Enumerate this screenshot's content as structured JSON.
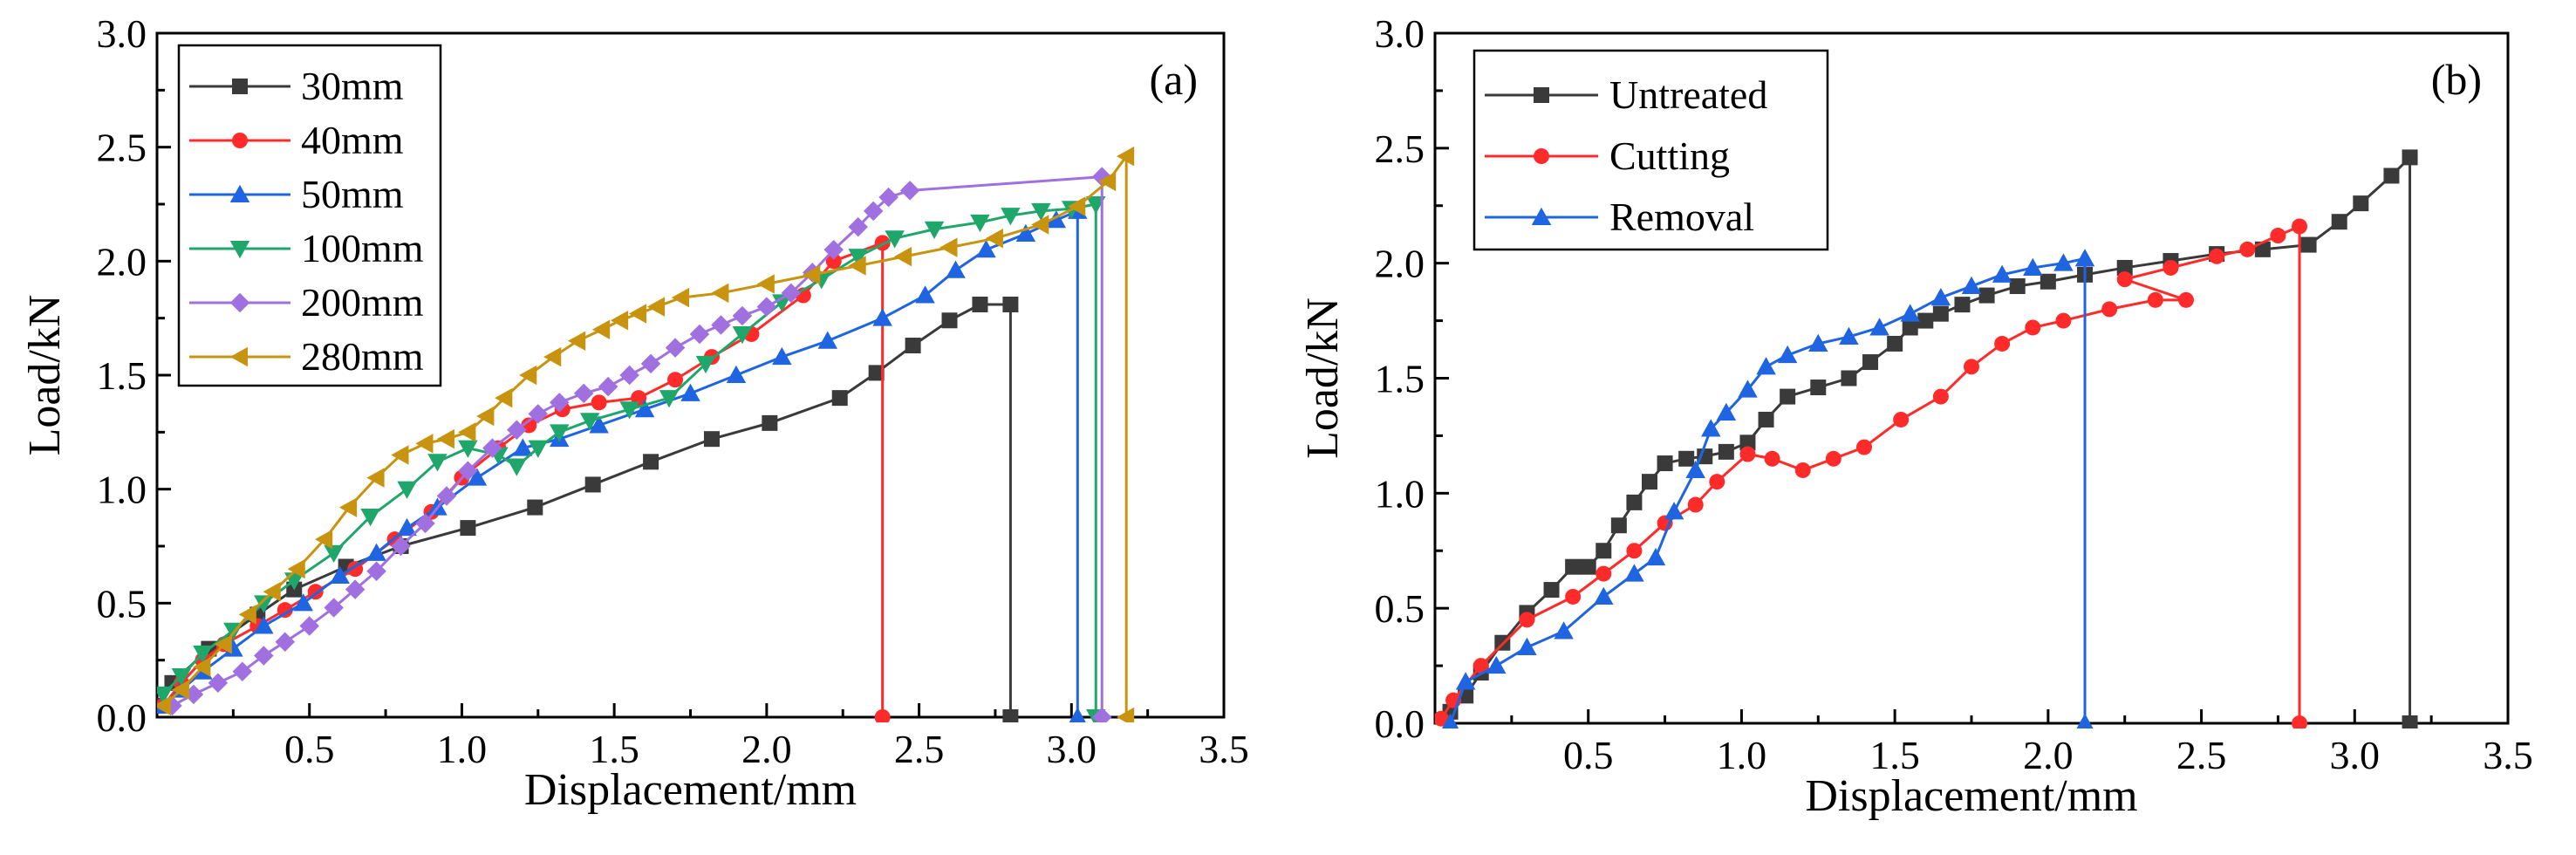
{
  "chart_data": [
    {
      "type": "line",
      "panel_label": "(a)",
      "xlabel": "Displacement/mm",
      "ylabel": "Load/kN",
      "xlim": [
        0,
        3.5
      ],
      "ylim": [
        0,
        3.0
      ],
      "xticks": [
        "0.5",
        "1.0",
        "1.5",
        "2.0",
        "2.5",
        "3.0",
        "3.5"
      ],
      "yticks": [
        "0.0",
        "0.5",
        "1.0",
        "1.5",
        "2.0",
        "2.5",
        "3.0"
      ],
      "legend_position": "top-left",
      "series": [
        {
          "name": "30mm",
          "color": "#3a3a3a",
          "marker": "square",
          "x": [
            0,
            0.05,
            0.17,
            0.33,
            0.45,
            0.62,
            0.8,
            1.02,
            1.24,
            1.43,
            1.62,
            1.82,
            2.01,
            2.24,
            2.36,
            2.48,
            2.6,
            2.7,
            2.8,
            2.8
          ],
          "y": [
            0.05,
            0.15,
            0.3,
            0.45,
            0.56,
            0.66,
            0.75,
            0.83,
            0.92,
            1.02,
            1.12,
            1.22,
            1.29,
            1.4,
            1.51,
            1.63,
            1.74,
            1.81,
            1.81,
            0.0
          ]
        },
        {
          "name": "40mm",
          "color": "#ff2a2a",
          "marker": "circle",
          "x": [
            0.02,
            0.08,
            0.15,
            0.22,
            0.33,
            0.42,
            0.52,
            0.65,
            0.78,
            0.9,
            1.0,
            1.12,
            1.22,
            1.33,
            1.45,
            1.58,
            1.7,
            1.82,
            1.95,
            2.12,
            2.22,
            2.38,
            2.38
          ],
          "y": [
            0.05,
            0.15,
            0.25,
            0.32,
            0.4,
            0.47,
            0.55,
            0.65,
            0.78,
            0.9,
            1.05,
            1.18,
            1.28,
            1.35,
            1.38,
            1.4,
            1.48,
            1.58,
            1.68,
            1.85,
            2.0,
            2.08,
            0.0
          ]
        },
        {
          "name": "50mm",
          "color": "#1f64e0",
          "marker": "triangle-up",
          "x": [
            0.02,
            0.08,
            0.15,
            0.25,
            0.35,
            0.48,
            0.6,
            0.72,
            0.82,
            0.92,
            1.05,
            1.2,
            1.32,
            1.45,
            1.6,
            1.75,
            1.9,
            2.05,
            2.2,
            2.38,
            2.52,
            2.62,
            2.72,
            2.85,
            2.95,
            3.02,
            3.02
          ],
          "y": [
            0.05,
            0.12,
            0.2,
            0.3,
            0.4,
            0.5,
            0.62,
            0.72,
            0.83,
            0.92,
            1.05,
            1.18,
            1.22,
            1.28,
            1.35,
            1.42,
            1.5,
            1.58,
            1.65,
            1.75,
            1.85,
            1.96,
            2.05,
            2.12,
            2.18,
            2.22,
            0.0
          ]
        },
        {
          "name": "100mm",
          "color": "#1fa66b",
          "marker": "triangle-down",
          "x": [
            0.02,
            0.08,
            0.15,
            0.25,
            0.35,
            0.45,
            0.58,
            0.7,
            0.82,
            0.92,
            1.02,
            1.12,
            1.18,
            1.25,
            1.32,
            1.42,
            1.55,
            1.68,
            1.8,
            1.92,
            2.05,
            2.18,
            2.3,
            2.42,
            2.55,
            2.7,
            2.8,
            2.9,
            3.0,
            3.08,
            3.08
          ],
          "y": [
            0.1,
            0.18,
            0.28,
            0.38,
            0.5,
            0.6,
            0.72,
            0.88,
            1.0,
            1.12,
            1.18,
            1.15,
            1.1,
            1.18,
            1.25,
            1.3,
            1.35,
            1.4,
            1.55,
            1.68,
            1.82,
            1.92,
            2.02,
            2.1,
            2.14,
            2.17,
            2.2,
            2.22,
            2.23,
            2.25,
            0.0
          ]
        },
        {
          "name": "200mm",
          "color": "#a070e0",
          "marker": "diamond",
          "x": [
            0.05,
            0.12,
            0.2,
            0.28,
            0.35,
            0.42,
            0.5,
            0.58,
            0.65,
            0.72,
            0.8,
            0.88,
            0.95,
            1.02,
            1.1,
            1.18,
            1.25,
            1.32,
            1.4,
            1.48,
            1.55,
            1.62,
            1.7,
            1.78,
            1.85,
            1.92,
            2.0,
            2.08,
            2.15,
            2.22,
            2.3,
            2.35,
            2.4,
            2.47,
            3.1,
            3.1
          ],
          "y": [
            0.05,
            0.1,
            0.15,
            0.2,
            0.27,
            0.33,
            0.4,
            0.48,
            0.56,
            0.64,
            0.75,
            0.85,
            0.97,
            1.08,
            1.18,
            1.26,
            1.33,
            1.38,
            1.42,
            1.45,
            1.5,
            1.55,
            1.62,
            1.68,
            1.72,
            1.76,
            1.8,
            1.86,
            1.95,
            2.05,
            2.15,
            2.22,
            2.28,
            2.31,
            2.37,
            0.0
          ]
        },
        {
          "name": "280mm",
          "color": "#c89410",
          "marker": "triangle-left",
          "x": [
            0.02,
            0.08,
            0.15,
            0.22,
            0.3,
            0.38,
            0.46,
            0.55,
            0.63,
            0.72,
            0.8,
            0.88,
            0.95,
            1.02,
            1.08,
            1.14,
            1.22,
            1.3,
            1.38,
            1.46,
            1.52,
            1.58,
            1.64,
            1.72,
            1.85,
            2.0,
            2.15,
            2.3,
            2.45,
            2.6,
            2.75,
            2.9,
            3.02,
            3.12,
            3.18,
            3.18
          ],
          "y": [
            0.05,
            0.12,
            0.22,
            0.32,
            0.45,
            0.55,
            0.65,
            0.78,
            0.92,
            1.05,
            1.15,
            1.2,
            1.22,
            1.25,
            1.32,
            1.4,
            1.5,
            1.58,
            1.65,
            1.7,
            1.74,
            1.77,
            1.8,
            1.84,
            1.86,
            1.9,
            1.94,
            1.98,
            2.02,
            2.06,
            2.1,
            2.16,
            2.24,
            2.35,
            2.46,
            0.0
          ]
        }
      ]
    },
    {
      "type": "line",
      "panel_label": "(b)",
      "xlabel": "Displacement/mm",
      "ylabel": "Load/kN",
      "xlim": [
        0,
        3.5
      ],
      "ylim": [
        0,
        3.0
      ],
      "xticks": [
        "0.5",
        "1.0",
        "1.5",
        "2.0",
        "2.5",
        "3.0",
        "3.5"
      ],
      "yticks": [
        "0.0",
        "0.5",
        "1.0",
        "1.5",
        "2.0",
        "2.5",
        "3.0"
      ],
      "legend_position": "top-left",
      "series": [
        {
          "name": "Untreated",
          "color": "#3a3a3a",
          "marker": "square",
          "x": [
            0.05,
            0.1,
            0.15,
            0.22,
            0.3,
            0.38,
            0.45,
            0.5,
            0.55,
            0.6,
            0.65,
            0.7,
            0.75,
            0.82,
            0.88,
            0.95,
            1.02,
            1.08,
            1.15,
            1.25,
            1.35,
            1.42,
            1.5,
            1.55,
            1.6,
            1.65,
            1.72,
            1.8,
            1.9,
            2.0,
            2.12,
            2.25,
            2.4,
            2.55,
            2.7,
            2.85,
            2.95,
            3.02,
            3.12,
            3.18,
            3.18
          ],
          "y": [
            0.05,
            0.12,
            0.22,
            0.35,
            0.48,
            0.58,
            0.68,
            0.68,
            0.75,
            0.86,
            0.96,
            1.05,
            1.13,
            1.15,
            1.16,
            1.18,
            1.22,
            1.32,
            1.42,
            1.46,
            1.5,
            1.57,
            1.65,
            1.72,
            1.75,
            1.78,
            1.82,
            1.86,
            1.9,
            1.92,
            1.95,
            1.98,
            2.01,
            2.04,
            2.06,
            2.08,
            2.18,
            2.26,
            2.38,
            2.46,
            0.0
          ]
        },
        {
          "name": "Cutting",
          "color": "#ff2a2a",
          "marker": "circle",
          "x": [
            0.02,
            0.06,
            0.15,
            0.3,
            0.45,
            0.55,
            0.65,
            0.75,
            0.85,
            0.92,
            1.02,
            1.1,
            1.2,
            1.3,
            1.4,
            1.52,
            1.65,
            1.75,
            1.85,
            1.95,
            2.05,
            2.2,
            2.35,
            2.45,
            2.25,
            2.4,
            2.55,
            2.65,
            2.75,
            2.82,
            2.82
          ],
          "y": [
            0.02,
            0.1,
            0.25,
            0.45,
            0.55,
            0.65,
            0.75,
            0.87,
            0.95,
            1.05,
            1.17,
            1.15,
            1.1,
            1.15,
            1.2,
            1.32,
            1.42,
            1.55,
            1.65,
            1.72,
            1.75,
            1.8,
            1.84,
            1.84,
            1.93,
            1.98,
            2.03,
            2.06,
            2.12,
            2.16,
            0.0
          ]
        },
        {
          "name": "Removal",
          "color": "#1f64e0",
          "marker": "triangle-up",
          "x": [
            0.05,
            0.1,
            0.2,
            0.3,
            0.42,
            0.55,
            0.65,
            0.72,
            0.78,
            0.85,
            0.9,
            0.95,
            1.02,
            1.08,
            1.15,
            1.25,
            1.35,
            1.45,
            1.55,
            1.65,
            1.75,
            1.85,
            1.95,
            2.05,
            2.12,
            2.12
          ],
          "y": [
            0.0,
            0.18,
            0.25,
            0.33,
            0.4,
            0.55,
            0.65,
            0.72,
            0.92,
            1.1,
            1.28,
            1.35,
            1.45,
            1.55,
            1.6,
            1.65,
            1.68,
            1.72,
            1.78,
            1.85,
            1.9,
            1.95,
            1.98,
            2.0,
            2.02,
            0.0
          ]
        }
      ]
    }
  ]
}
